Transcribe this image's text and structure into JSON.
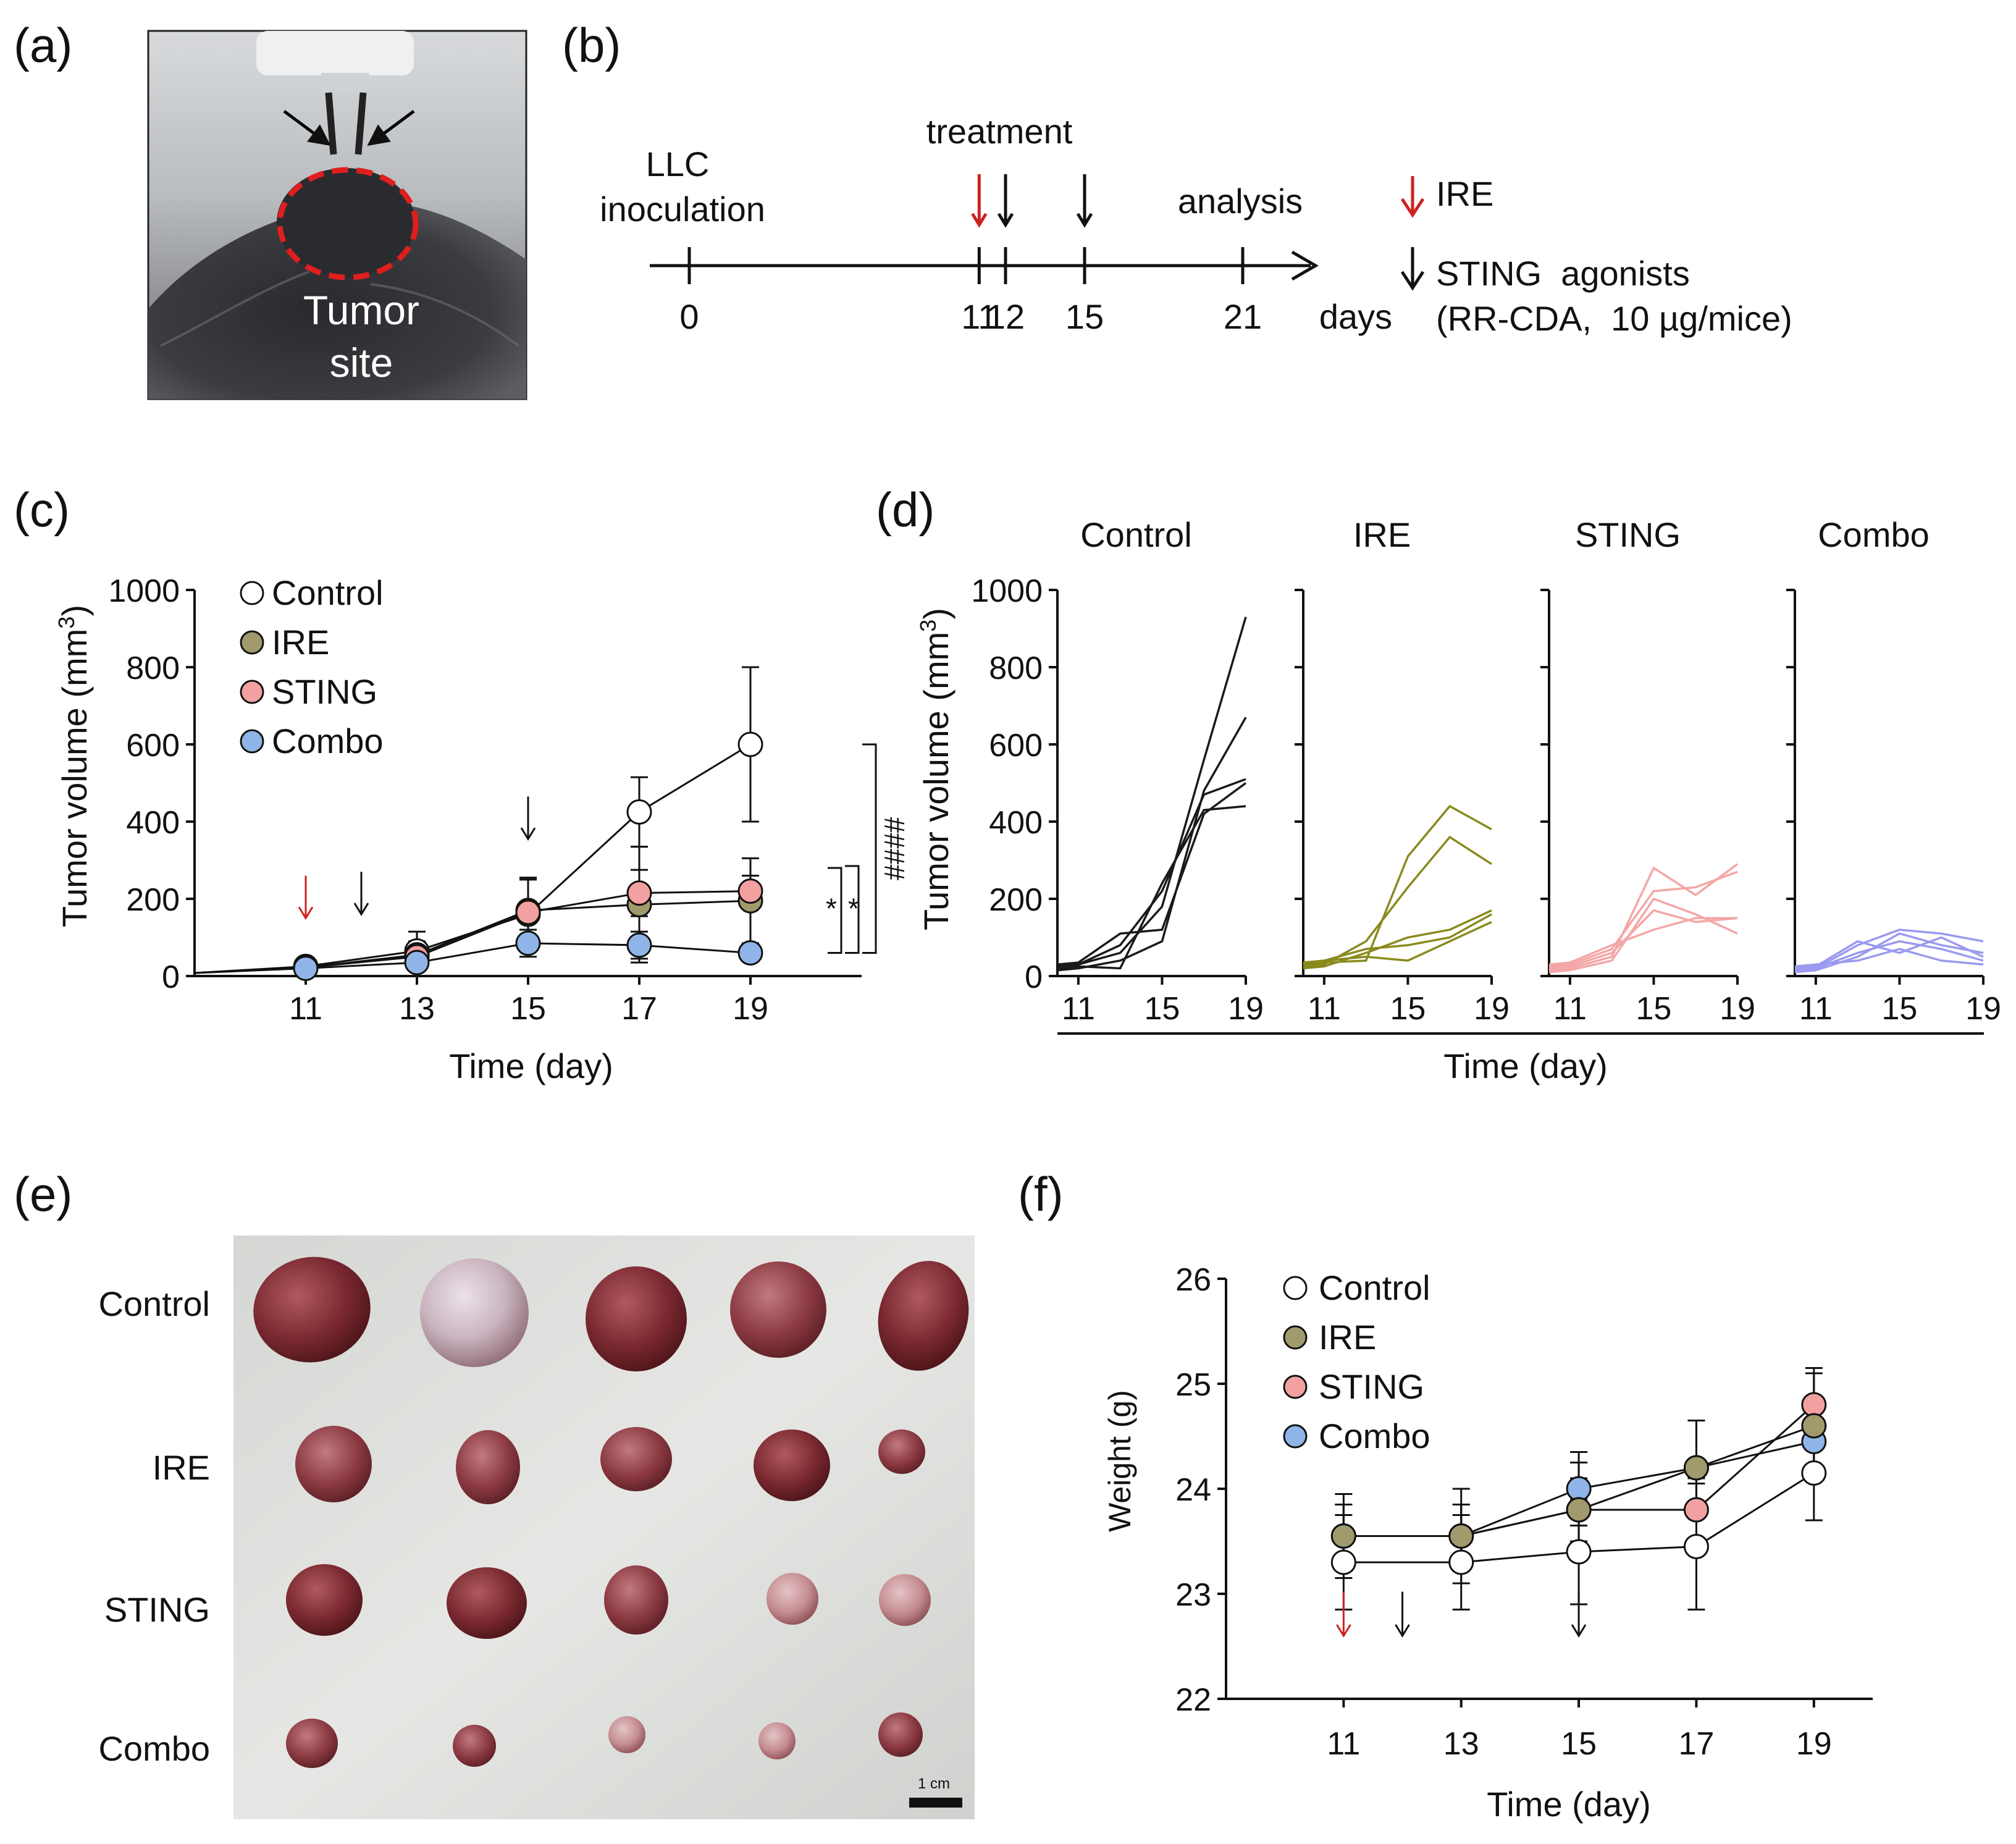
{
  "panels": {
    "a": {
      "label": "(a)",
      "photo_caption": [
        "Tumor",
        "site"
      ]
    },
    "b": {
      "label": "(b)",
      "timeline": {
        "labels": {
          "inoculation": [
            "LLC",
            "inoculation"
          ],
          "treatment": "treatment",
          "analysis": "analysis",
          "unit": "days"
        },
        "ticks": [
          "0",
          "11",
          "12",
          "15",
          "21"
        ],
        "tick_days": [
          0,
          11,
          12,
          15,
          21
        ],
        "arrows": [
          {
            "day": 11,
            "type": "IRE"
          },
          {
            "day": 12,
            "type": "STING"
          },
          {
            "day": 15,
            "type": "STING"
          }
        ]
      },
      "legend": {
        "ire": "IRE",
        "sting": [
          "STING  agonists",
          "(RR-CDA,  10 µg/mice)"
        ]
      }
    },
    "c": {
      "label": "(c)"
    },
    "d": {
      "label": "(d)"
    },
    "e": {
      "label": "(e)",
      "row_labels": [
        "Control",
        "IRE",
        "STING",
        "Combo"
      ],
      "scale_bar": "1 cm"
    },
    "f": {
      "label": "(f)"
    }
  },
  "colors": {
    "control": "#ffffff",
    "ire": "#a09a6c",
    "sting": "#f2a0a0",
    "combo": "#8fb5e8",
    "ire_arrow": "#cc2222",
    "ire_lines": "#8a8a1e",
    "sting_lines": "#f4a6a6",
    "combo_lines": "#9a9af0"
  },
  "chart_data": [
    {
      "panel": "c",
      "type": "line",
      "xlabel": "Time (day)",
      "ylabel": "Tumor volume (mm3)",
      "xticks": [
        11,
        13,
        15,
        17,
        19
      ],
      "yticks": [
        0,
        200,
        400,
        600,
        800,
        1000
      ],
      "xlim": [
        9,
        21
      ],
      "ylim": [
        0,
        1000
      ],
      "treatment_arrows": [
        {
          "day": 11,
          "type": "IRE",
          "y": 150
        },
        {
          "day": 12,
          "type": "STING",
          "y": 160
        },
        {
          "day": 15,
          "type": "STING",
          "y": 355
        }
      ],
      "series": [
        {
          "name": "Control",
          "key": "control",
          "x": [
            9,
            11,
            13,
            15,
            17,
            19
          ],
          "y": [
            8,
            25,
            65,
            160,
            425,
            600
          ],
          "err": [
            0,
            8,
            50,
            90,
            90,
            200
          ]
        },
        {
          "name": "IRE",
          "key": "ire",
          "x": [
            9,
            11,
            13,
            15,
            17,
            19
          ],
          "y": [
            8,
            22,
            55,
            170,
            185,
            195
          ],
          "err": [
            0,
            8,
            35,
            80,
            150,
            110
          ]
        },
        {
          "name": "STING",
          "key": "sting",
          "x": [
            9,
            11,
            13,
            15,
            17,
            19
          ],
          "y": [
            8,
            22,
            50,
            165,
            215,
            220
          ],
          "err": [
            0,
            6,
            30,
            90,
            60,
            40
          ]
        },
        {
          "name": "Combo",
          "key": "combo",
          "x": [
            9,
            11,
            13,
            15,
            17,
            19
          ],
          "y": [
            8,
            20,
            35,
            85,
            80,
            60
          ],
          "err": [
            0,
            5,
            15,
            35,
            35,
            20
          ]
        }
      ],
      "significance": [
        {
          "between": [
            "Control",
            "Combo"
          ],
          "label": "####"
        },
        {
          "between": [
            "IRE",
            "Combo"
          ],
          "label": "*"
        },
        {
          "between": [
            "STING",
            "Combo"
          ],
          "label": "*"
        }
      ]
    },
    {
      "panel": "d",
      "type": "line",
      "xlabel": "Time (day)",
      "ylabel": "Tumor volume (mm3)",
      "xticks": [
        11,
        15,
        19
      ],
      "yticks": [
        0,
        200,
        400,
        600,
        800,
        1000
      ],
      "xlim": [
        10,
        19
      ],
      "ylim": [
        0,
        1000
      ],
      "groups": [
        {
          "title": "Control",
          "key": "control",
          "x": [
            10,
            11,
            13,
            15,
            17,
            19
          ],
          "mice": [
            [
              25,
              30,
              60,
              180,
              560,
              930
            ],
            [
              20,
              25,
              20,
              240,
              430,
              440
            ],
            [
              30,
              35,
              110,
              120,
              420,
              500
            ],
            [
              15,
              20,
              40,
              90,
              480,
              670
            ],
            [
              25,
              30,
              80,
              220,
              470,
              510
            ]
          ]
        },
        {
          "title": "IRE",
          "key": "ire",
          "x": [
            10,
            11,
            13,
            15,
            17,
            19
          ],
          "mice": [
            [
              30,
              35,
              40,
              310,
              440,
              380
            ],
            [
              25,
              30,
              90,
              230,
              360,
              290
            ],
            [
              20,
              25,
              60,
              100,
              120,
              170
            ],
            [
              35,
              40,
              50,
              40,
              90,
              140
            ],
            [
              30,
              40,
              70,
              80,
              100,
              160
            ]
          ]
        },
        {
          "title": "STING",
          "key": "sting",
          "x": [
            10,
            11,
            13,
            15,
            17,
            19
          ],
          "mice": [
            [
              15,
              20,
              50,
              280,
              210,
              290
            ],
            [
              25,
              30,
              70,
              220,
              230,
              270
            ],
            [
              20,
              25,
              60,
              170,
              140,
              150
            ],
            [
              10,
              15,
              40,
              200,
              160,
              110
            ],
            [
              30,
              35,
              80,
              120,
              150,
              150
            ]
          ]
        },
        {
          "title": "Combo",
          "key": "combo",
          "x": [
            10,
            11,
            13,
            15,
            17,
            19
          ],
          "mice": [
            [
              15,
              20,
              80,
              120,
              110,
              90
            ],
            [
              20,
              25,
              90,
              60,
              100,
              50
            ],
            [
              10,
              15,
              50,
              110,
              80,
              60
            ],
            [
              25,
              30,
              40,
              70,
              40,
              30
            ],
            [
              15,
              20,
              60,
              90,
              70,
              40
            ]
          ]
        }
      ]
    },
    {
      "panel": "f",
      "type": "line",
      "xlabel": "Time (day)",
      "ylabel": "Weight (g)",
      "xticks": [
        11,
        13,
        15,
        17,
        19
      ],
      "yticks": [
        22,
        23,
        24,
        25,
        26
      ],
      "xlim": [
        9,
        20
      ],
      "ylim": [
        22,
        26
      ],
      "treatment_arrows": [
        {
          "day": 11,
          "type": "IRE",
          "y": 22.6
        },
        {
          "day": 12,
          "type": "STING",
          "y": 22.6
        },
        {
          "day": 15,
          "type": "STING",
          "y": 22.6
        }
      ],
      "series": [
        {
          "name": "Control",
          "key": "control",
          "x": [
            11,
            13,
            15,
            17,
            19
          ],
          "y": [
            23.3,
            23.3,
            23.4,
            23.45,
            24.15
          ],
          "err": [
            0.45,
            0.45,
            0.5,
            0.6,
            0.45
          ]
        },
        {
          "name": "IRE",
          "key": "ire",
          "x": [
            11,
            13,
            15,
            17,
            19
          ],
          "y": [
            23.55,
            23.55,
            23.8,
            24.2,
            24.6
          ],
          "err": [
            0.4,
            0.45,
            0.45,
            0.45,
            0.5
          ]
        },
        {
          "name": "STING",
          "key": "sting",
          "x": [
            11,
            13,
            15,
            17,
            19
          ],
          "y": [
            23.55,
            23.55,
            23.8,
            23.8,
            24.8
          ],
          "err": [
            0.3,
            0.3,
            0.3,
            0.3,
            0.35
          ]
        },
        {
          "name": "Combo",
          "key": "combo",
          "x": [
            11,
            13,
            15,
            17,
            19
          ],
          "y": [
            23.55,
            23.55,
            24.0,
            24.2,
            24.45
          ],
          "err": [
            0.3,
            0.3,
            0.35,
            0.45,
            0.3
          ]
        }
      ]
    }
  ]
}
